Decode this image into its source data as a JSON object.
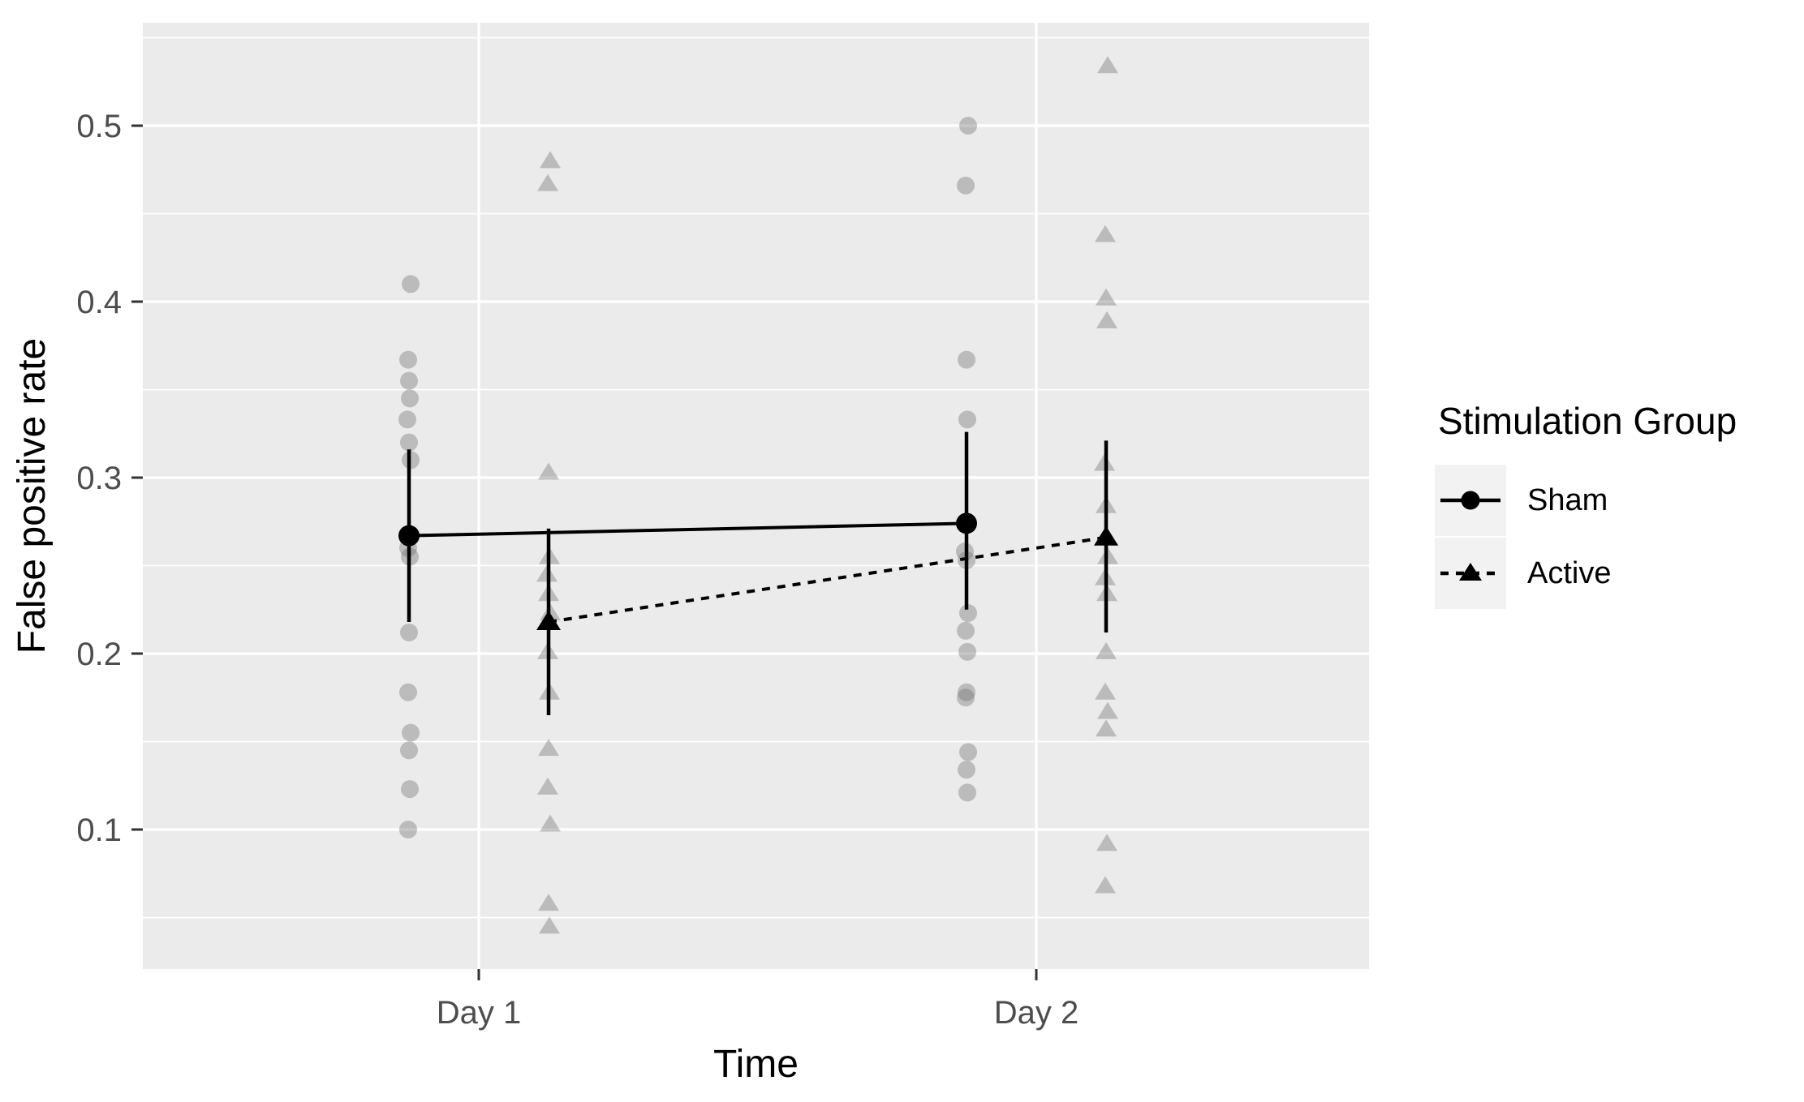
{
  "chart_data": {
    "type": "line",
    "title": "",
    "xlabel": "Time",
    "ylabel": "False positive rate",
    "categories": [
      "Day 1",
      "Day 2"
    ],
    "y_ticks": [
      0.1,
      0.2,
      0.3,
      0.4,
      0.5
    ],
    "y_minor_ticks": [
      0.05,
      0.15,
      0.25,
      0.35,
      0.45,
      0.55
    ],
    "ylim": [
      0.02,
      0.56
    ],
    "grid": {
      "major": true,
      "minor": true,
      "color": "#FFFFFF",
      "panel_background": "#EBEBEB"
    },
    "legend": {
      "title": "Stimulation Group",
      "position": "right",
      "entries": [
        {
          "label": "Sham",
          "marker": "circle",
          "line": "solid"
        },
        {
          "label": "Active",
          "marker": "triangle",
          "line": "dotted"
        }
      ]
    },
    "series": [
      {
        "name": "Sham",
        "marker": "circle",
        "line": "solid",
        "means": [
          0.267,
          0.274
        ],
        "error_low": [
          0.218,
          0.225
        ],
        "error_high": [
          0.316,
          0.326
        ],
        "points_day1": [
          0.41,
          0.367,
          0.355,
          0.345,
          0.333,
          0.32,
          0.31,
          0.26,
          0.255,
          0.212,
          0.178,
          0.155,
          0.145,
          0.123,
          0.1
        ],
        "points_day2": [
          0.5,
          0.466,
          0.367,
          0.333,
          0.258,
          0.253,
          0.223,
          0.213,
          0.201,
          0.178,
          0.175,
          0.144,
          0.134,
          0.121
        ]
      },
      {
        "name": "Active",
        "marker": "triangle",
        "line": "dotted",
        "means": [
          0.218,
          0.266
        ],
        "error_low": [
          0.165,
          0.212
        ],
        "error_high": [
          0.271,
          0.321
        ],
        "points_day1": [
          0.48,
          0.467,
          0.303,
          0.255,
          0.245,
          0.234,
          0.223,
          0.201,
          0.178,
          0.146,
          0.124,
          0.103,
          0.058,
          0.045
        ],
        "points_day2": [
          0.534,
          0.438,
          0.402,
          0.389,
          0.308,
          0.284,
          0.255,
          0.243,
          0.234,
          0.201,
          0.178,
          0.167,
          0.157,
          0.092,
          0.068
        ]
      }
    ]
  },
  "style": {
    "panel_bg": "#EBEBEB",
    "grid_color": "#FFFFFF",
    "tick_color": "#333333",
    "axis_text_color": "#4D4D4D",
    "axis_title_color": "#000000",
    "point_color": "rgba(115,115,115,0.40)",
    "stat_color": "#000000",
    "legend_key_bg": "#F2F2F2"
  }
}
